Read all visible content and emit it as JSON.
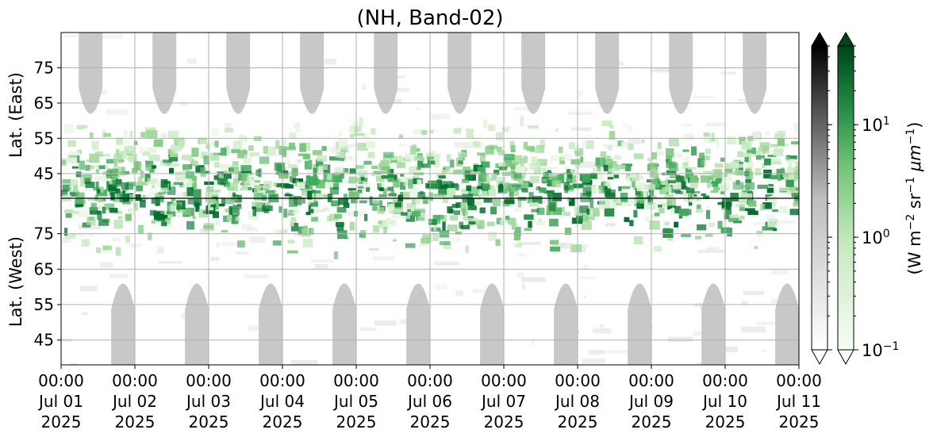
{
  "chart_data": {
    "type": "heatmap",
    "title": "(NH, Band-02)",
    "x": {
      "tick_labels": [
        {
          "time": "00:00",
          "date": "Jul 01",
          "year": "2025"
        },
        {
          "time": "00:00",
          "date": "Jul 02",
          "year": "2025"
        },
        {
          "time": "00:00",
          "date": "Jul 03",
          "year": "2025"
        },
        {
          "time": "00:00",
          "date": "Jul 04",
          "year": "2025"
        },
        {
          "time": "00:00",
          "date": "Jul 05",
          "year": "2025"
        },
        {
          "time": "00:00",
          "date": "Jul 06",
          "year": "2025"
        },
        {
          "time": "00:00",
          "date": "Jul 07",
          "year": "2025"
        },
        {
          "time": "00:00",
          "date": "Jul 08",
          "year": "2025"
        },
        {
          "time": "00:00",
          "date": "Jul 09",
          "year": "2025"
        },
        {
          "time": "00:00",
          "date": "Jul 10",
          "year": "2025"
        },
        {
          "time": "00:00",
          "date": "Jul 11",
          "year": "2025"
        }
      ],
      "range": [
        "2025-07-01 00:00",
        "2025-07-11 00:00"
      ]
    },
    "y_east": {
      "label": "Lat. (East)",
      "ticks": [
        "45",
        "55",
        "65",
        "75"
      ],
      "range": [
        38,
        85
      ]
    },
    "y_west": {
      "label": "Lat. (West)",
      "ticks": [
        "75",
        "65",
        "55",
        "45"
      ],
      "range": [
        85,
        38
      ]
    },
    "colorbar": {
      "label_main": "(W m",
      "label_exp1": "−2",
      "label_mid": " sr",
      "label_exp2": "−1",
      "label_mu": " μm",
      "label_exp3": "−1",
      "label_end": ")",
      "scale": "log",
      "range": [
        0.1,
        50
      ],
      "ticks": [
        {
          "base": "10",
          "exp": "−1",
          "value": 0.1
        },
        {
          "base": "10",
          "exp": "0",
          "value": 1
        },
        {
          "base": "10",
          "exp": "1",
          "value": 10
        }
      ],
      "colormaps": [
        "Greys",
        "Greens"
      ],
      "extend": "both"
    },
    "grid": true,
    "colors": {
      "green_dark": "#00441b",
      "green_mid": "#41ab5d",
      "green_light": "#c7e9c0",
      "night": "#c8c8c8",
      "background_faint": "#f2f2f2"
    },
    "night_regions_note": "grey lobes at daily intervals (no-data regions)"
  }
}
